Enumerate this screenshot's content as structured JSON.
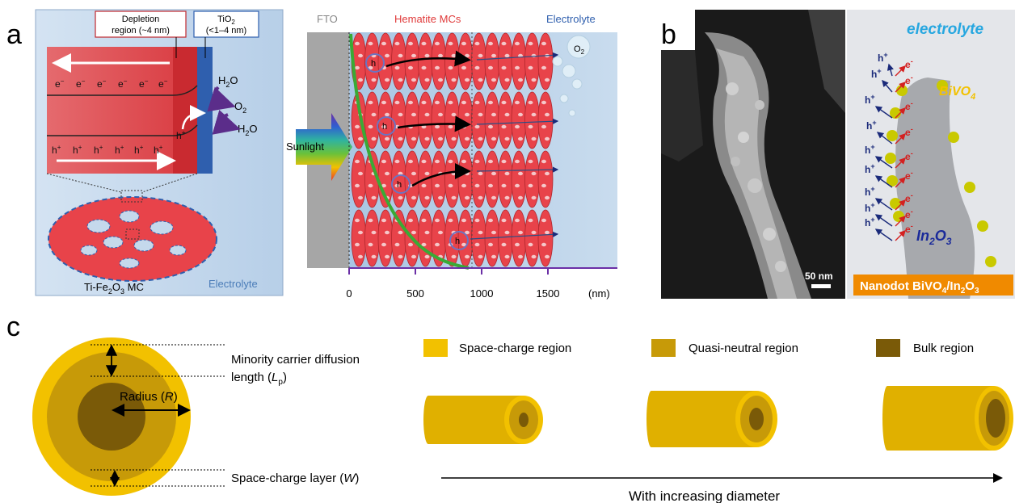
{
  "panel_a": {
    "letter": "a",
    "depletion_label_1": "Depletion",
    "depletion_label_2": "region (~4 nm)",
    "tio2_label_1": "TiO",
    "tio2_sub": "2",
    "tio2_label_2": "(<1–4 nm)",
    "electron_symbol": "e",
    "electron_sup": "−",
    "hole_symbol": "h",
    "hole_sup": "+",
    "h2o_top": "H",
    "h2o_top_sub": "2",
    "h2o_top_end": "O",
    "o2": "O",
    "o2_sub": "2",
    "h2o_bottom": "H",
    "h2o_bottom_sub": "2",
    "h2o_bottom_end": "O",
    "mc_label_1": "Ti-Fe",
    "mc_label_sub": "2",
    "mc_label_2": "O",
    "mc_label_sub2": "3",
    "mc_label_3": " MC",
    "electrolyte_left": "Electrolyte",
    "fto": "FTO",
    "hematite": "Hematite MCs",
    "electrolyte_right": "Electrolyte",
    "o2_bubble": "O",
    "o2_bubble_sub": "2",
    "sunlight": "Sunlight",
    "hole_label": "h",
    "axis_ticks": [
      "0",
      "500",
      "1000",
      "1500"
    ],
    "axis_unit": "(nm)"
  },
  "panel_b": {
    "letter": "b",
    "scale_bar": "50 nm",
    "electrolyte": "electrolyte",
    "bivo4": "BiVO",
    "bivo4_sub": "4",
    "in2o3_1": "In",
    "in2o3_sub1": "2",
    "in2o3_2": "O",
    "in2o3_sub2": "3",
    "caption_1": "Nanodot BiVO",
    "caption_sub1": "4",
    "caption_2": "/In",
    "caption_sub2": "2",
    "caption_3": "O",
    "caption_sub3": "3",
    "hole": "h",
    "hole_sup": "+",
    "electron": "e",
    "electron_sup": "-"
  },
  "panel_c": {
    "letter": "c",
    "diffusion_1": "Minority carrier diffusion",
    "diffusion_2": "length (",
    "diffusion_L": "L",
    "diffusion_p": "p",
    "diffusion_end": ")",
    "radius_1": "Radius (",
    "radius_R": "R",
    "radius_end": ")",
    "space_charge_layer": "Space-charge layer (",
    "space_charge_W": "W",
    "space_charge_end": ")",
    "legend": [
      "Space-charge region",
      "Quasi-neutral region",
      "Bulk region"
    ],
    "arrow_label": "With increasing diameter"
  },
  "colors": {
    "space_charge": "#f2c100",
    "quasi_neutral": "#c79a08",
    "bulk": "#7a5a08",
    "hematite_red": "#e8434a",
    "tio2_blue": "#2f5fae",
    "electrolyte_bg": "#c5d9ec",
    "fto_gray": "#a6a6a6",
    "green_curve": "#3aaa35",
    "orange_caption": "#f08a00"
  }
}
